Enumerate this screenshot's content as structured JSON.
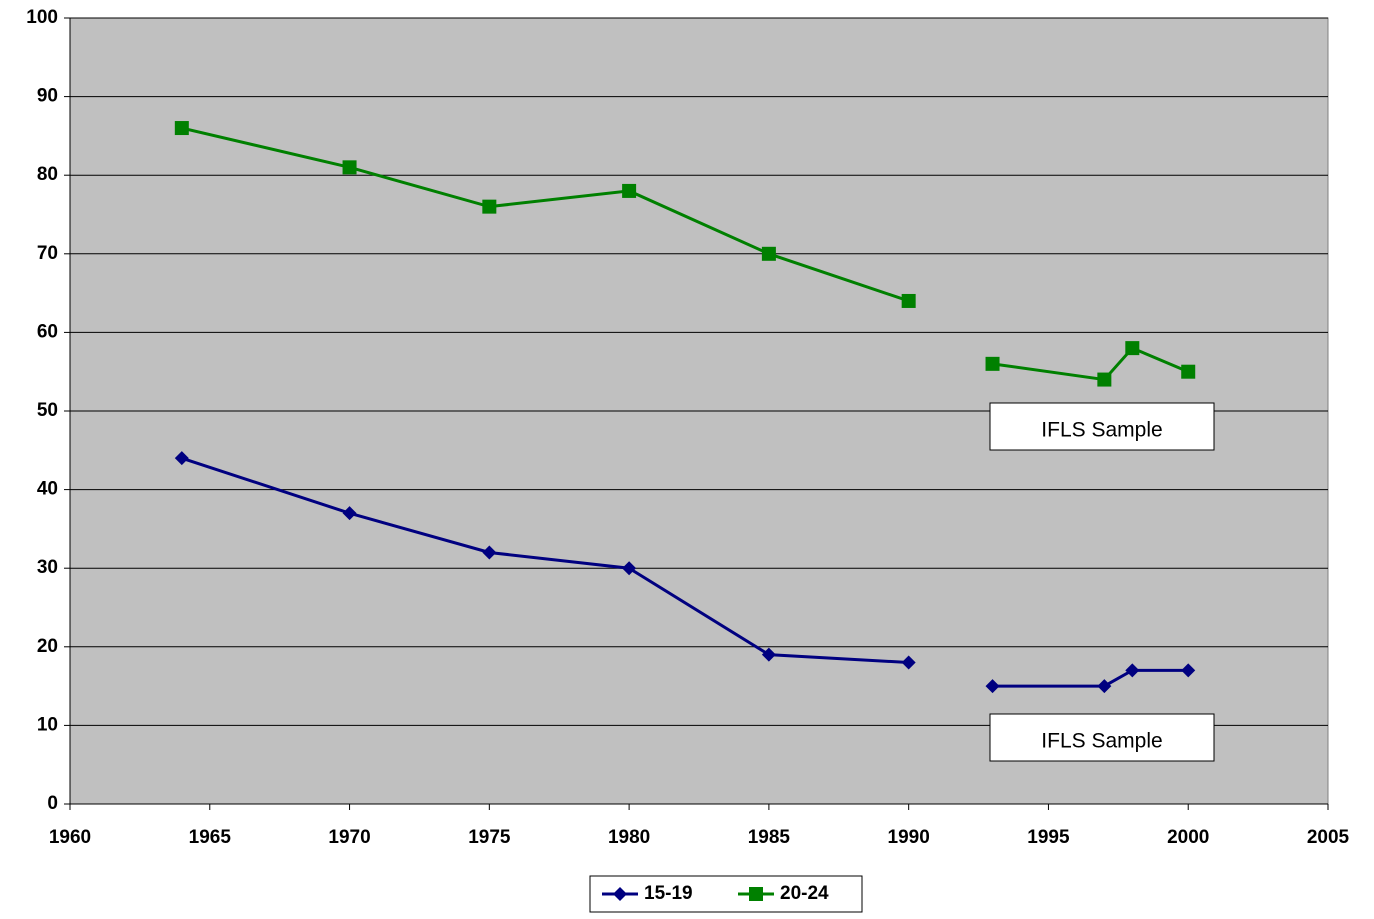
{
  "chart_data": {
    "type": "line",
    "x": [
      1964,
      1970,
      1975,
      1980,
      1985,
      1990,
      null,
      1993,
      1997,
      1998,
      2000
    ],
    "series": [
      {
        "name": "15-19",
        "color": "#000080",
        "marker": "diamond",
        "values": [
          44,
          37,
          32,
          30,
          19,
          18,
          null,
          15,
          15,
          17,
          17
        ]
      },
      {
        "name": "20-24",
        "color": "#008000",
        "marker": "square",
        "values": [
          86,
          81,
          76,
          78,
          70,
          64,
          null,
          56,
          54,
          58,
          55
        ]
      }
    ],
    "xlim": [
      1960,
      2005
    ],
    "xticks": [
      1960,
      1965,
      1970,
      1975,
      1980,
      1985,
      1990,
      1995,
      2000,
      2005
    ],
    "ylim": [
      0,
      100
    ],
    "yticks": [
      0,
      10,
      20,
      30,
      40,
      50,
      60,
      70,
      80,
      90,
      100
    ],
    "grid": true,
    "plot_background": "#c0c0c0",
    "legend": "bottom",
    "annotations": [
      "IFLS Sample",
      "IFLS Sample"
    ]
  }
}
